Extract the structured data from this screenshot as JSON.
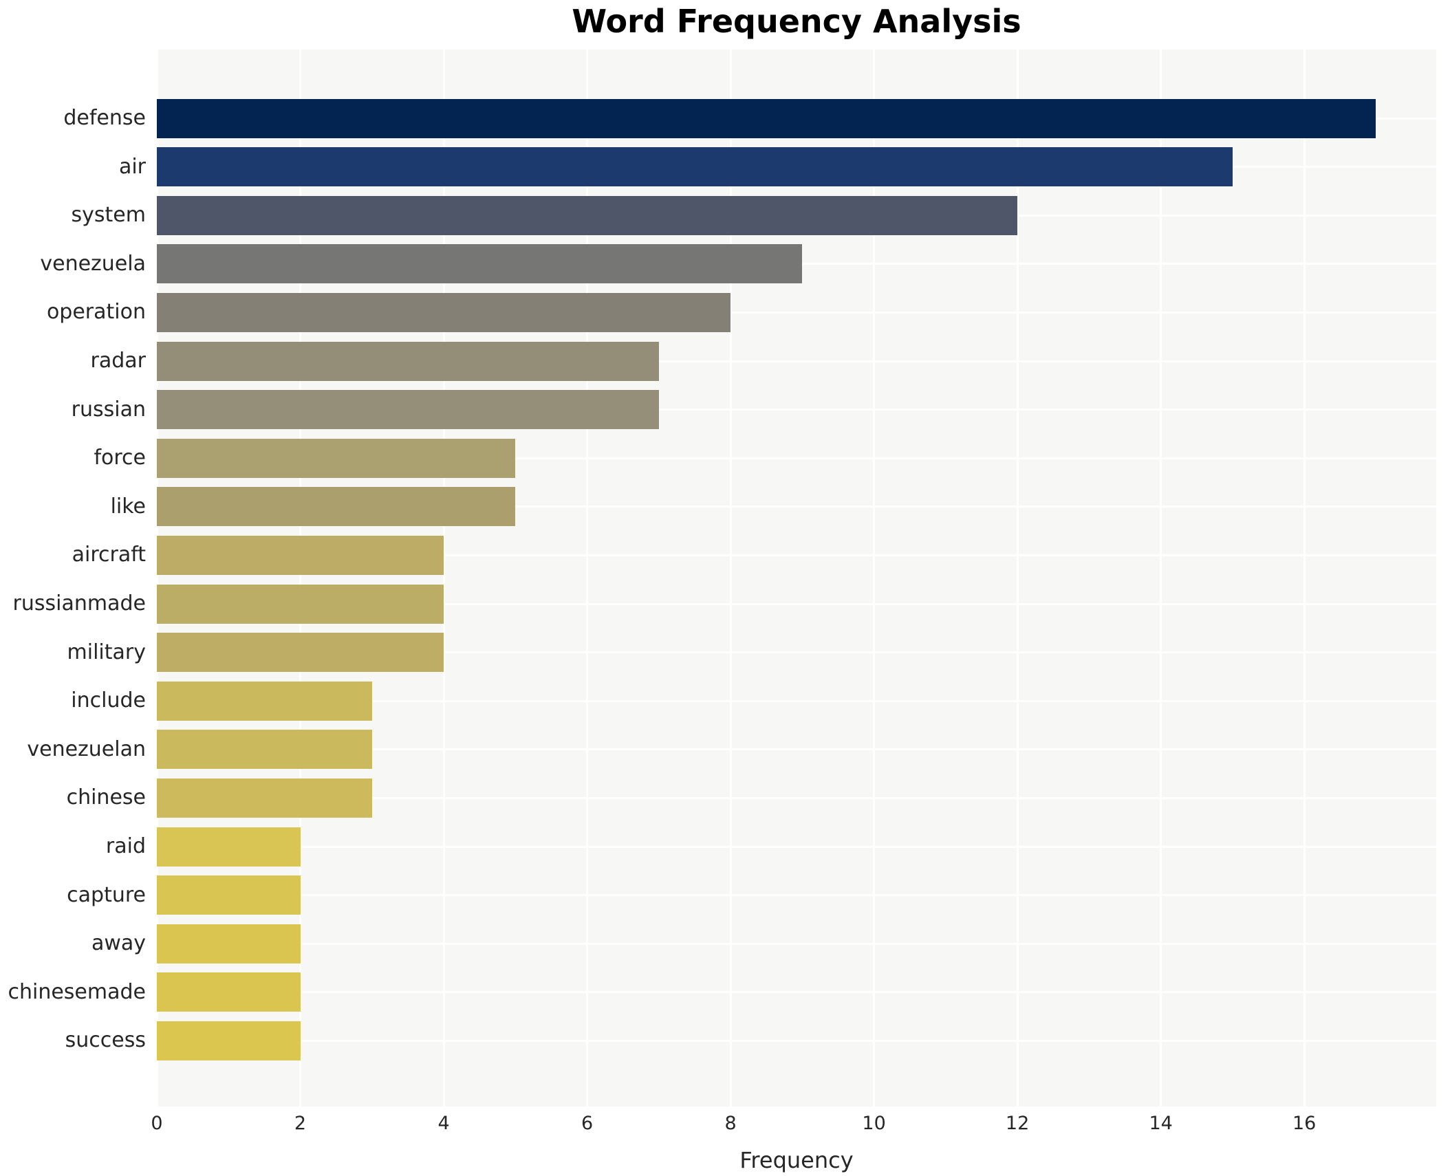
{
  "chart_data": {
    "type": "bar",
    "orientation": "horizontal",
    "title": "Word Frequency Analysis",
    "xlabel": "Frequency",
    "ylabel": "",
    "categories": [
      "defense",
      "air",
      "system",
      "venezuela",
      "operation",
      "radar",
      "russian",
      "force",
      "like",
      "aircraft",
      "russianmade",
      "military",
      "include",
      "venezuelan",
      "chinese",
      "raid",
      "capture",
      "away",
      "chinesemade",
      "success"
    ],
    "values": [
      17,
      15,
      12,
      9,
      8,
      7,
      7,
      5,
      5,
      4,
      4,
      4,
      3,
      3,
      3,
      2,
      2,
      2,
      2,
      2
    ],
    "bar_colors": [
      "#032450",
      "#1c3a6e",
      "#4f566a",
      "#767674",
      "#858076",
      "#948e79",
      "#958f79",
      "#aba06f",
      "#ab9f6e",
      "#bcac66",
      "#bcad66",
      "#bdad65",
      "#cbb95d",
      "#cbba5d",
      "#ccba5c",
      "#d9c553",
      "#d9c552",
      "#dac551",
      "#dac550",
      "#dbc650"
    ],
    "x_ticks": [
      "0",
      "2",
      "4",
      "6",
      "8",
      "10",
      "12",
      "14",
      "16"
    ],
    "x_tick_values": [
      0,
      2,
      4,
      6,
      8,
      10,
      12,
      14,
      16
    ],
    "xlim": [
      0,
      17.84
    ],
    "grid": true,
    "legend": false,
    "plot_background": "#f7f7f6",
    "grid_color": "#ffffff",
    "text_color": "#262626",
    "title_color": "#000000"
  }
}
